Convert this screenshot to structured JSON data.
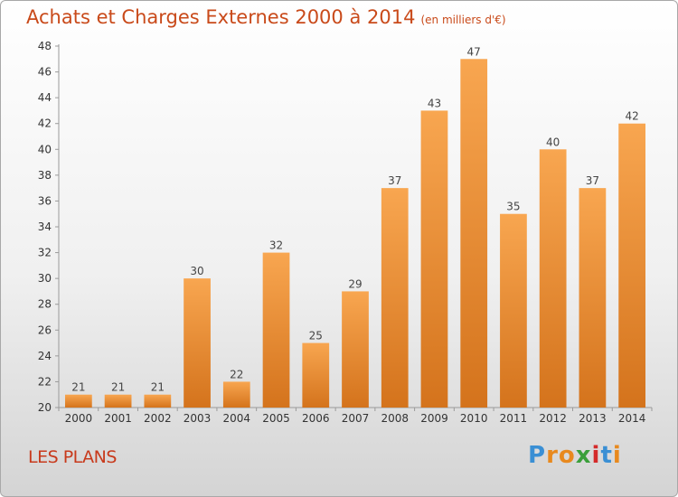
{
  "header": {
    "title": "Achats et Charges Externes 2000 à 2014",
    "subtitle": "(en milliers d'€)"
  },
  "footer": {
    "place": "LES PLANS",
    "logo": "Proxiti"
  },
  "colors": {
    "title": "#c94a1a",
    "bar_light": "#f8a650",
    "bar_dark": "#d4731c",
    "logo_letters": [
      "#3a8fd4",
      "#e8891e",
      "#e8891e",
      "#3a9f3a",
      "#d42a2a",
      "#3a8fd4",
      "#e8891e"
    ]
  },
  "chart_data": {
    "type": "bar",
    "title": "Achats et Charges Externes 2000 à 2014",
    "subtitle": "(en milliers d'€)",
    "categories": [
      "2000",
      "2001",
      "2002",
      "2003",
      "2004",
      "2005",
      "2006",
      "2007",
      "2008",
      "2009",
      "2010",
      "2011",
      "2012",
      "2013",
      "2014"
    ],
    "values": [
      21,
      21,
      21,
      30,
      22,
      32,
      25,
      29,
      37,
      43,
      47,
      35,
      40,
      37,
      42
    ],
    "ylim": [
      20,
      48
    ],
    "yticks": [
      20,
      22,
      24,
      26,
      28,
      30,
      32,
      34,
      36,
      38,
      40,
      42,
      44,
      46,
      48
    ],
    "grid": false,
    "legend": "none",
    "data_labels": true
  }
}
